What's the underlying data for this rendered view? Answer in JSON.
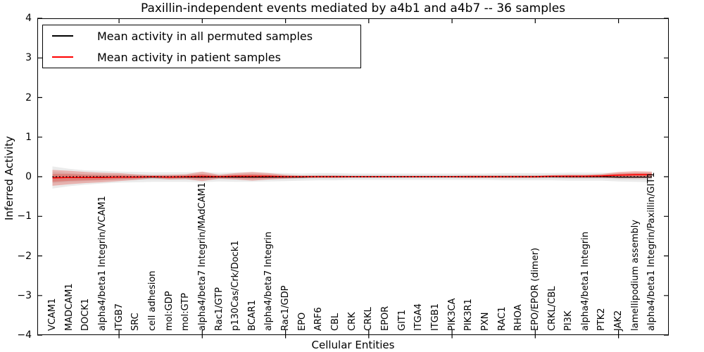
{
  "figure": {
    "title": "Paxillin-independent events mediated by a4b1 and a4b7 -- 36 samples",
    "xlabel": "Cellular Entities",
    "ylabel": "Inferred Activity"
  },
  "legend": {
    "items": [
      {
        "label": "Mean activity in all permuted samples",
        "color": "#000000"
      },
      {
        "label": "Mean activity in patient samples",
        "color": "#ff0000"
      }
    ]
  },
  "chart_data": {
    "type": "line",
    "title": "Paxillin-independent events mediated by a4b1 and a4b7 -- 36 samples",
    "xlabel": "Cellular Entities",
    "ylabel": "Inferred Activity",
    "ylim": [
      -4,
      4
    ],
    "yticks": [
      -4,
      -3,
      -2,
      -1,
      0,
      1,
      2,
      3,
      4
    ],
    "ytick_labels": [
      "−4",
      "−3",
      "−2",
      "−1",
      "0",
      "1",
      "2",
      "3",
      "4"
    ],
    "grid": false,
    "legend_position": "upper left",
    "axis_tick_category_indices": [
      4,
      9,
      14,
      19,
      24,
      29,
      34
    ],
    "categories": [
      "VCAM1",
      "MADCAM1",
      "DOCK1",
      "alpha4/beta1 Integrin/VCAM1",
      "ITGB7",
      "SRC",
      "cell adhesion",
      "mol:GDP",
      "mol:GTP",
      "alpha4/beta7 Integrin/MAdCAM1",
      "Rac1/GTP",
      "p130Cas/Crk/Dock1",
      "BCAR1",
      "alpha4/beta7 Integrin",
      "Rac1/GDP",
      "EPO",
      "ARF6",
      "CBL",
      "CRK",
      "CRKL",
      "EPOR",
      "GIT1",
      "ITGA4",
      "ITGB1",
      "PIK3CA",
      "PIK3R1",
      "PXN",
      "RAC1",
      "RHOA",
      "EPO/EPOR (dimer)",
      "CRKL/CBL",
      "PI3K",
      "alpha4/beta1 Integrin",
      "PTK2",
      "JAK2",
      "lamellipodium assembly",
      "alpha4/beta1 Integrin/Paxillin/GIT1"
    ],
    "series": [
      {
        "name": "Mean activity in all permuted samples",
        "line_color": "#000000",
        "band_color": "rgba(130,130,130,0.16)",
        "mean": [
          -0.02,
          -0.02,
          -0.02,
          -0.01,
          -0.01,
          -0.01,
          -0.01,
          -0.01,
          -0.01,
          -0.01,
          -0.01,
          -0.01,
          -0.01,
          -0.01,
          -0.01,
          -0.01,
          0,
          0,
          0,
          0,
          0,
          0,
          0,
          0,
          0,
          0,
          0,
          0,
          0,
          0,
          0,
          0,
          0,
          0,
          -0.01,
          -0.01,
          -0.01
        ],
        "std": [
          0.28,
          0.22,
          0.18,
          0.16,
          0.14,
          0.13,
          0.12,
          0.12,
          0.12,
          0.13,
          0.11,
          0.12,
          0.12,
          0.11,
          0.1,
          0.09,
          0.09,
          0.09,
          0.08,
          0.08,
          0.08,
          0.08,
          0.08,
          0.08,
          0.08,
          0.08,
          0.08,
          0.09,
          0.09,
          0.09,
          0.09,
          0.1,
          0.1,
          0.1,
          0.11,
          0.12,
          0.13
        ]
      },
      {
        "name": "Mean activity in patient samples",
        "line_color": "#ff0000",
        "band_color": "rgba(222,45,38,0.30)",
        "mean": [
          -0.03,
          -0.02,
          -0.02,
          -0.02,
          -0.01,
          -0.01,
          0,
          -0.01,
          0,
          0.01,
          0,
          0.01,
          0.01,
          0.01,
          0,
          0,
          0,
          0,
          0,
          0,
          0,
          0,
          0,
          0,
          0,
          0,
          0,
          0,
          0,
          0,
          0.01,
          0.01,
          0.01,
          0.02,
          0.04,
          0.05,
          0.05
        ],
        "std": [
          0.2,
          0.17,
          0.14,
          0.12,
          0.1,
          0.07,
          0.04,
          0.06,
          0.06,
          0.12,
          0.05,
          0.08,
          0.11,
          0.08,
          0.05,
          0.03,
          0.03,
          0.03,
          0.02,
          0.02,
          0.02,
          0.02,
          0.02,
          0.02,
          0.02,
          0.03,
          0.03,
          0.03,
          0.03,
          0.03,
          0.03,
          0.04,
          0.04,
          0.05,
          0.08,
          0.09,
          0.08
        ]
      }
    ],
    "zero_line": {
      "value": 0,
      "style": "dotted",
      "color": "#000000"
    }
  }
}
